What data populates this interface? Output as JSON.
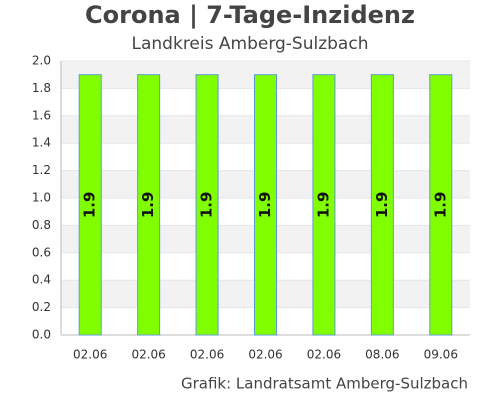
{
  "chart_data": {
    "type": "bar",
    "title": "Corona | 7-Tage-Inzidenz",
    "subtitle": "Landkreis Amberg-Sulzbach",
    "footer": "Grafik: Landratsamt Amberg-Sulzbach",
    "categories": [
      "02.06",
      "02.06",
      "02.06",
      "02.06",
      "02.06",
      "08.06",
      "09.06"
    ],
    "values": [
      1.9,
      1.9,
      1.9,
      1.9,
      1.9,
      1.9,
      1.9
    ],
    "color": "#80ff00",
    "ylim": [
      0,
      2
    ],
    "yticks": [
      {
        "value": 0,
        "label": "0.0"
      },
      0.2,
      0.4,
      0.6,
      0.8,
      {
        "value": 1,
        "label": "1.0"
      },
      1.2,
      1.4,
      1.6,
      1.8,
      {
        "value": 2,
        "label": "2.0"
      }
    ],
    "grid": true
  }
}
